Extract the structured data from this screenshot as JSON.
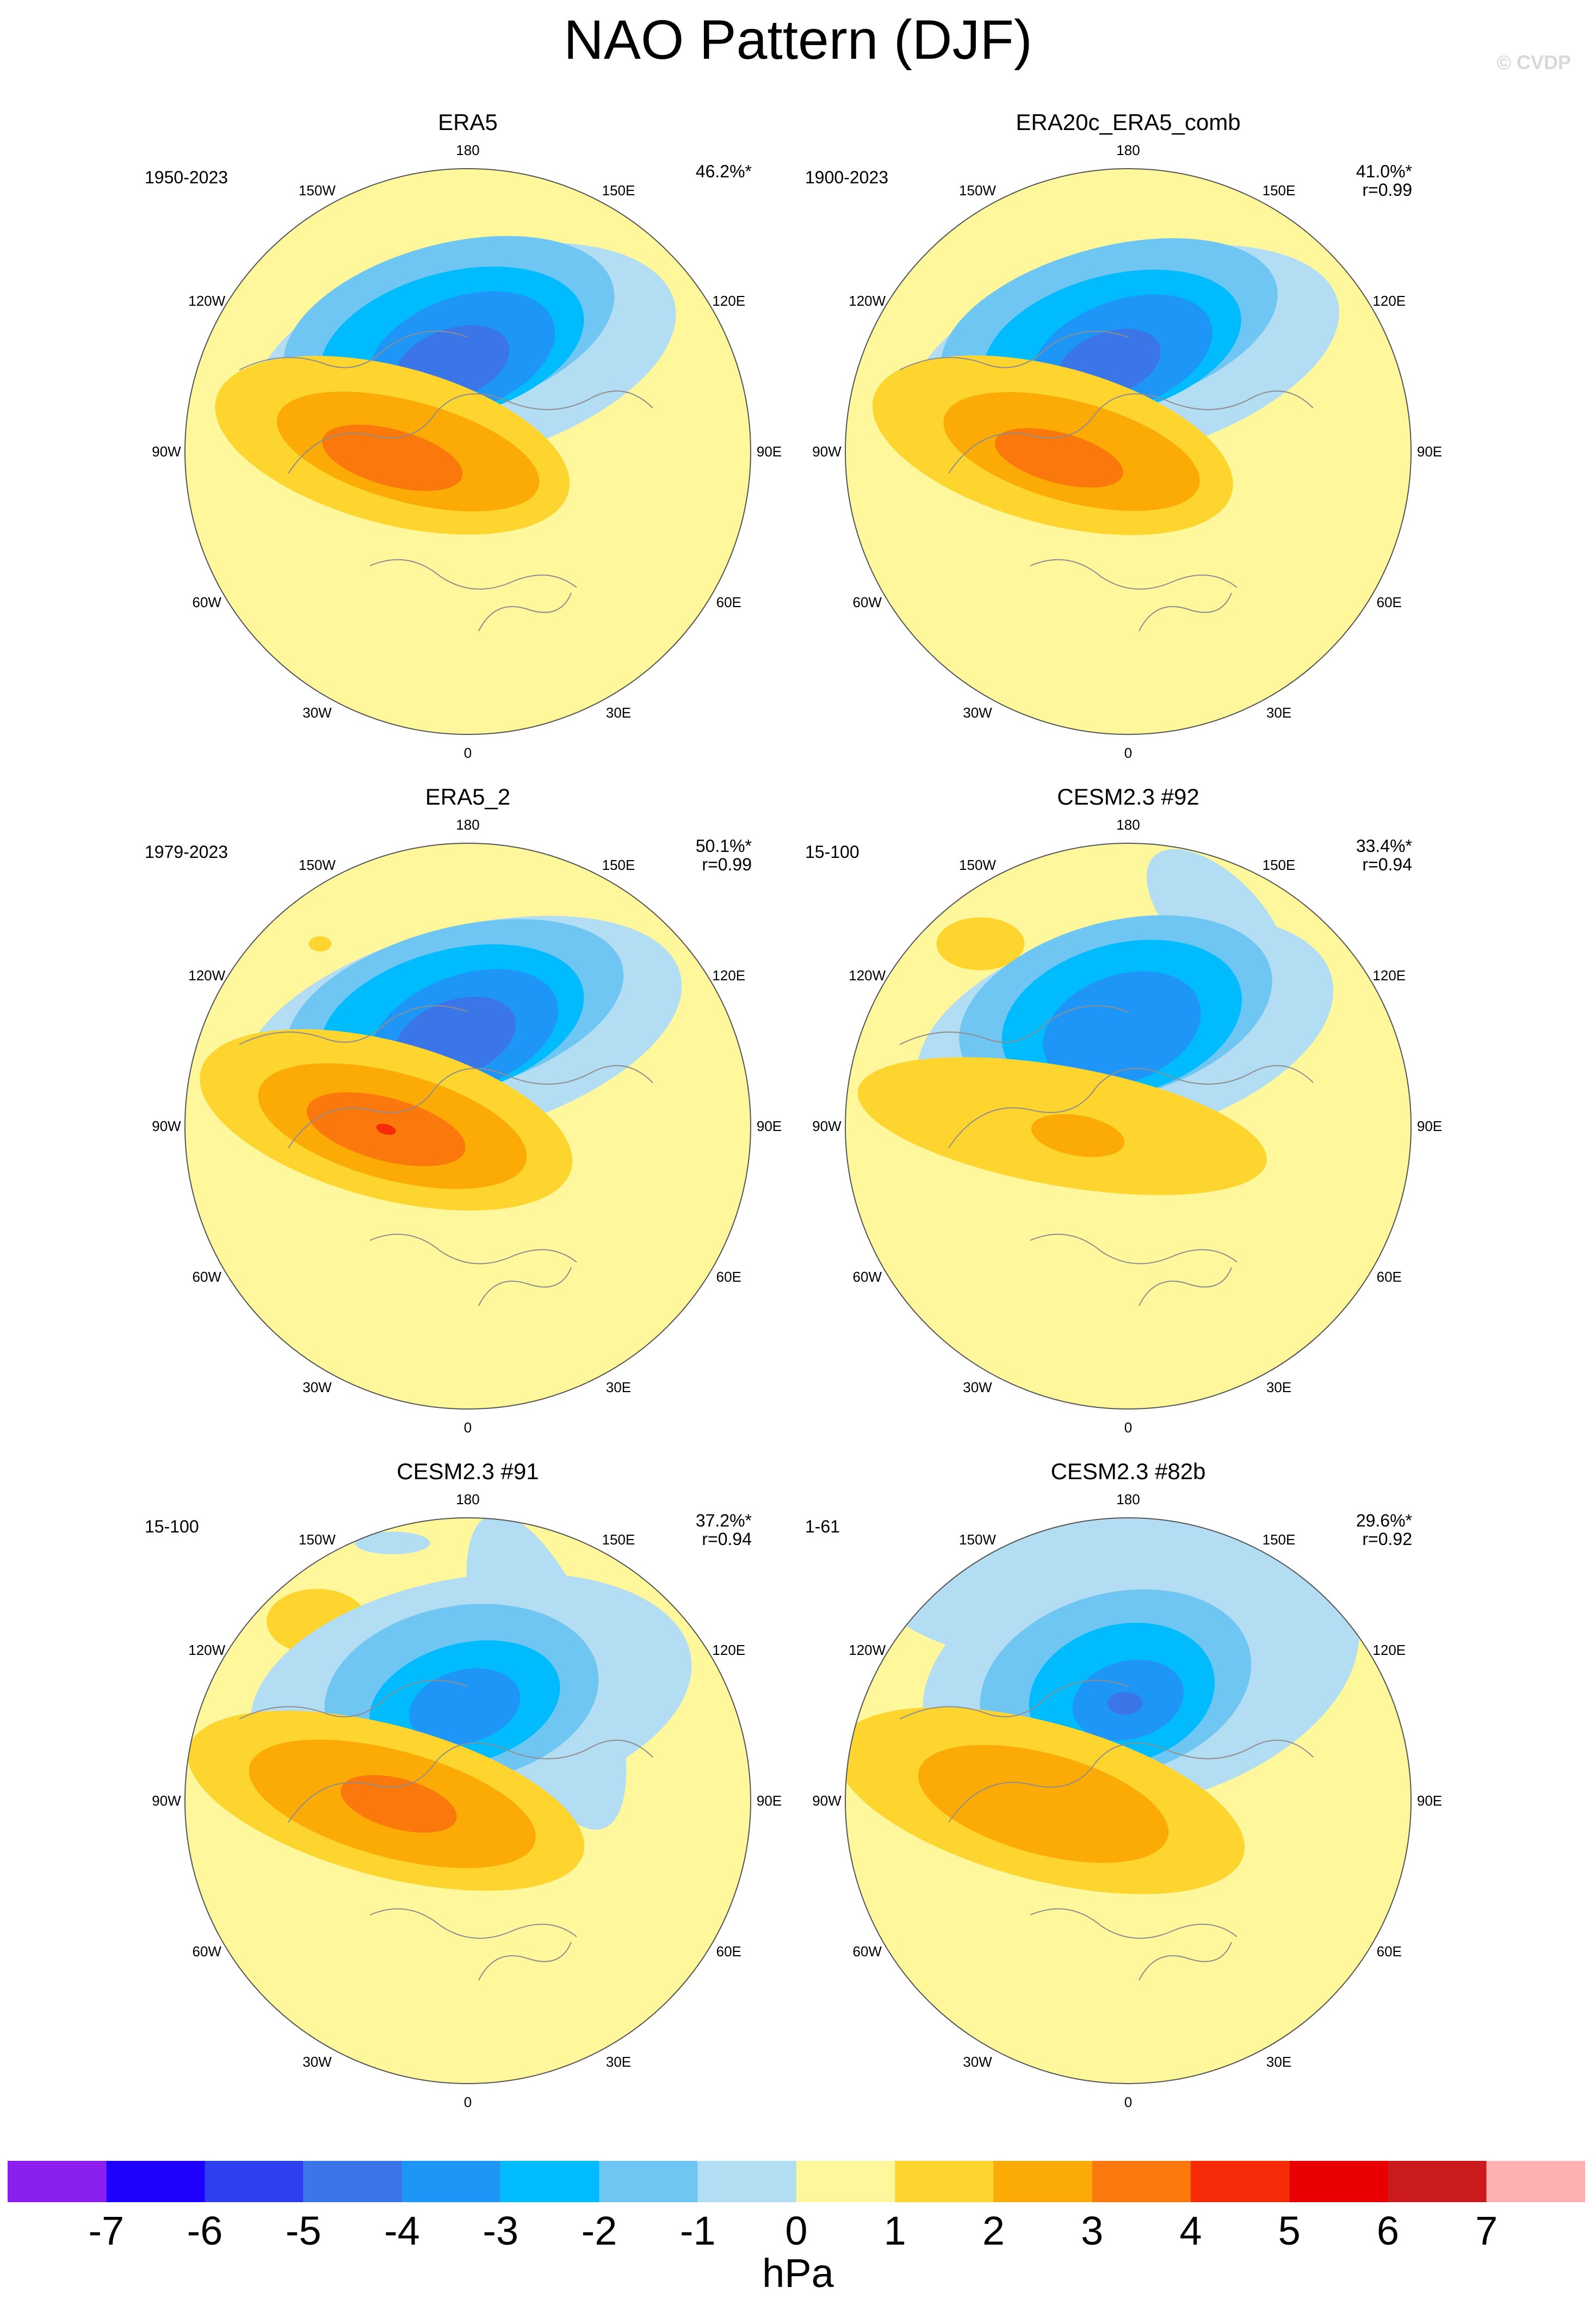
{
  "title": "NAO Pattern (DJF)",
  "watermark": "© CVDP",
  "panels": [
    {
      "name": "ERA5",
      "period": "1950-2023",
      "pct": "46.2%*",
      "r": ""
    },
    {
      "name": "ERA20c_ERA5_comb",
      "period": "1900-2023",
      "pct": "41.0%*",
      "r": "r=0.99"
    },
    {
      "name": "ERA5_2",
      "period": "1979-2023",
      "pct": "50.1%*",
      "r": "r=0.99"
    },
    {
      "name": "CESM2.3 #92",
      "period": "15-100",
      "pct": "33.4%*",
      "r": "r=0.94"
    },
    {
      "name": "CESM2.3 #91",
      "period": "15-100",
      "pct": "37.2%*",
      "r": "r=0.94"
    },
    {
      "name": "CESM2.3 #82b",
      "period": "1-61",
      "pct": "29.6%*",
      "r": "r=0.92"
    }
  ],
  "longitude_labels": [
    "180",
    "150E",
    "120E",
    "90E",
    "60E",
    "30E",
    "0",
    "30W",
    "60W",
    "90W",
    "120W",
    "150W"
  ],
  "colorbar": {
    "units": "hPa",
    "ticks": [
      "-7",
      "-6",
      "-5",
      "-4",
      "-3",
      "-2",
      "-1",
      "0",
      "1",
      "2",
      "3",
      "4",
      "5",
      "6",
      "7"
    ],
    "colors": [
      "#8a1ff0",
      "#1e00ff",
      "#2e3ff0",
      "#3a76e8",
      "#1e96f7",
      "#00bcff",
      "#6fc6f3",
      "#b3ddf2",
      "#fff79b",
      "#fed52e",
      "#fbaa06",
      "#fa780c",
      "#f72b07",
      "#e80000",
      "#cc1b1f",
      "#ffb0b3"
    ]
  }
}
